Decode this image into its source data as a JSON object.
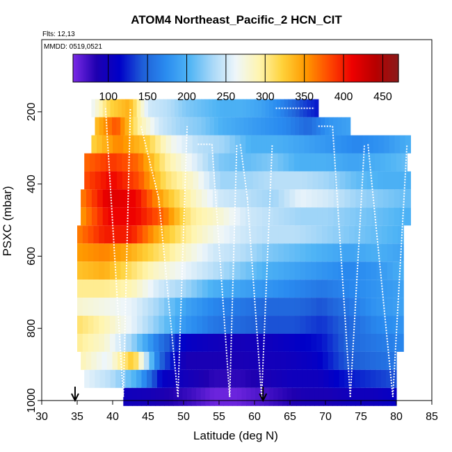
{
  "chart_data": {
    "type": "heatmap",
    "title": "ATOM4 Northeast_Pacific_2 HCN_CIT",
    "flights_label": "Flts: 12,13",
    "date_label": "MMDD: 0519,0521",
    "xlabel": "Latitude (deg N)",
    "ylabel": "PSXC (mbar)",
    "xlim": [
      30,
      85
    ],
    "ylim": [
      1000,
      0
    ],
    "x_ticks": [
      30,
      35,
      40,
      45,
      50,
      55,
      60,
      65,
      70,
      75,
      80,
      85
    ],
    "y_ticks": [
      200,
      400,
      600,
      800,
      1000
    ],
    "colorbar": {
      "min": 55,
      "max": 470,
      "ticks": [
        100,
        150,
        200,
        250,
        300,
        350,
        400,
        450
      ],
      "colors": [
        "#7b2be6",
        "#1f00b0",
        "#0000c8",
        "#1f5fd8",
        "#2a8cf0",
        "#4fb4f5",
        "#a8d8f8",
        "#eef6fa",
        "#fff5b0",
        "#ffd23a",
        "#ff9a00",
        "#ff4a00",
        "#ee0000",
        "#b80000",
        "#8a1a1a"
      ]
    },
    "pressure_bins": [
      190,
      240,
      290,
      340,
      390,
      440,
      490,
      540,
      590,
      640,
      690,
      740,
      790,
      840,
      890,
      940,
      990
    ],
    "rows": [
      {
        "p": 190,
        "lat": [
          37,
          69
        ],
        "v": [
          260,
          320,
          340,
          250,
          240,
          220,
          210,
          200,
          200,
          190,
          170,
          140,
          120
        ]
      },
      {
        "p": 240,
        "lat": [
          37.5,
          73.5
        ],
        "v": [
          330,
          380,
          300,
          250,
          230,
          220,
          200,
          190,
          180,
          170,
          150,
          180,
          190
        ]
      },
      {
        "p": 290,
        "lat": [
          37,
          82
        ],
        "v": [
          320,
          360,
          330,
          270,
          240,
          230,
          200,
          200,
          190,
          180,
          170,
          180,
          200
        ]
      },
      {
        "p": 340,
        "lat": [
          36,
          81.5
        ],
        "v": [
          370,
          390,
          370,
          300,
          260,
          220,
          210,
          220,
          200,
          200,
          190,
          200,
          210
        ]
      },
      {
        "p": 390,
        "lat": [
          36,
          82
        ],
        "v": [
          380,
          410,
          380,
          310,
          280,
          230,
          230,
          240,
          240,
          230,
          210,
          200,
          200
        ]
      },
      {
        "p": 440,
        "lat": [
          35.5,
          82
        ],
        "v": [
          360,
          420,
          410,
          340,
          290,
          250,
          240,
          230,
          260,
          250,
          230,
          220,
          210
        ]
      },
      {
        "p": 490,
        "lat": [
          35.5,
          82
        ],
        "v": [
          350,
          410,
          410,
          370,
          300,
          280,
          250,
          240,
          230,
          230,
          220,
          210,
          200
        ]
      },
      {
        "p": 540,
        "lat": [
          35,
          81
        ],
        "v": [
          360,
          400,
          400,
          340,
          300,
          270,
          250,
          240,
          240,
          230,
          220,
          210,
          200
        ]
      },
      {
        "p": 590,
        "lat": [
          35,
          81
        ],
        "v": [
          350,
          360,
          340,
          310,
          280,
          250,
          240,
          220,
          210,
          200,
          190,
          200,
          190
        ]
      },
      {
        "p": 640,
        "lat": [
          35,
          81
        ],
        "v": [
          330,
          340,
          310,
          280,
          260,
          240,
          220,
          200,
          190,
          180,
          170,
          180,
          200
        ]
      },
      {
        "p": 690,
        "lat": [
          35,
          81
        ],
        "v": [
          300,
          300,
          290,
          250,
          230,
          200,
          190,
          180,
          170,
          160,
          170,
          180,
          190
        ]
      },
      {
        "p": 740,
        "lat": [
          35,
          81
        ],
        "v": [
          280,
          270,
          260,
          230,
          190,
          170,
          160,
          150,
          150,
          140,
          160,
          180,
          190
        ]
      },
      {
        "p": 790,
        "lat": [
          35,
          81
        ],
        "v": [
          310,
          290,
          260,
          220,
          180,
          160,
          150,
          140,
          140,
          130,
          150,
          170,
          180
        ]
      },
      {
        "p": 840,
        "lat": [
          35,
          81
        ],
        "v": [
          300,
          280,
          230,
          160,
          110,
          100,
          95,
          100,
          110,
          120,
          150,
          160,
          170
        ]
      },
      {
        "p": 890,
        "lat": [
          35.5,
          80
        ],
        "v": [
          290,
          260,
          330,
          150,
          90,
          90,
          90,
          95,
          100,
          110,
          140,
          150,
          160
        ]
      },
      {
        "p": 940,
        "lat": [
          36,
          80
        ],
        "v": [
          260,
          240,
          200,
          110,
          95,
          80,
          80,
          90,
          100,
          100,
          120,
          130,
          140
        ]
      },
      {
        "p": 990,
        "lat": [
          41.5,
          80
        ],
        "v": [
          100,
          95,
          85,
          75,
          60,
          60,
          70,
          80,
          90,
          90,
          100,
          100,
          110
        ]
      }
    ],
    "flight_track_color": "#ffffff",
    "markers": [
      {
        "type": "arrow-down",
        "x": 34.7
      },
      {
        "type": "arrow-down",
        "x": 61.2
      }
    ]
  }
}
